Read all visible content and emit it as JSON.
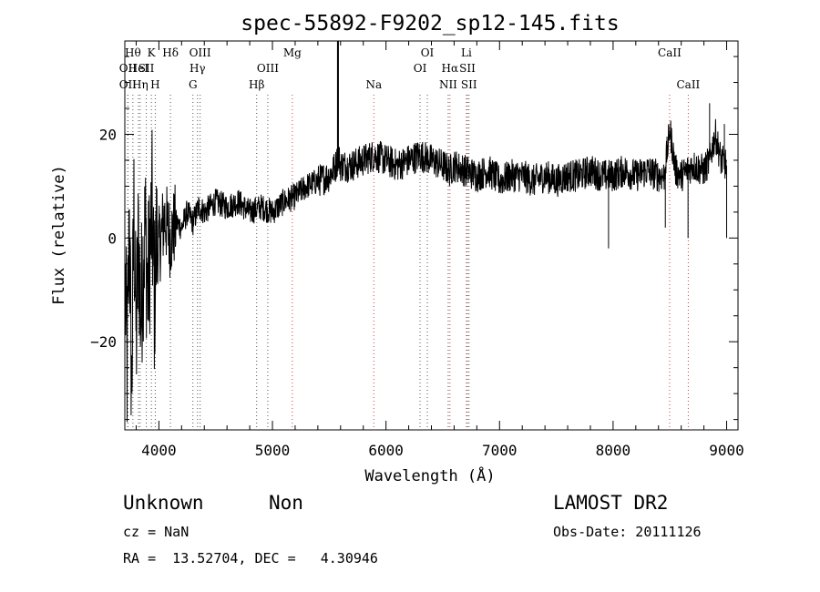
{
  "chart_data": {
    "type": "line",
    "title": "spec-55892-F9202_sp12-145.fits",
    "xlabel": "Wavelength (Å)",
    "ylabel": "Flux (relative)",
    "xlim": [
      3700,
      9100
    ],
    "ylim": [
      -37,
      38
    ],
    "x_ticks": [
      4000,
      5000,
      6000,
      7000,
      8000,
      9000
    ],
    "y_ticks": [
      -20,
      0,
      20
    ],
    "grid": false,
    "series": [
      {
        "color": "#000000",
        "x": [
          3700,
          3720,
          3740,
          3760,
          3780,
          3800,
          3820,
          3840,
          3860,
          3880,
          3900,
          3920,
          3940,
          3960,
          3980,
          4000,
          4050,
          4100,
          4150,
          4200,
          4250,
          4300,
          4350,
          4400,
          4500,
          4600,
          4700,
          4800,
          4900,
          5000,
          5100,
          5200,
          5300,
          5400,
          5500,
          5560,
          5580,
          5600,
          5700,
          5800,
          5900,
          6000,
          6100,
          6200,
          6300,
          6400,
          6500,
          6563,
          6600,
          6700,
          6800,
          6900,
          7000,
          7100,
          7200,
          7300,
          7400,
          7500,
          7600,
          7700,
          7800,
          7900,
          8000,
          8100,
          8200,
          8300,
          8400,
          8450,
          8500,
          8550,
          8600,
          8650,
          8700,
          8800,
          8850,
          8900,
          8950,
          9000
        ],
        "y": [
          -5,
          -25,
          3,
          -30,
          5,
          -20,
          0,
          -15,
          -5,
          2,
          -10,
          -3,
          5,
          -12,
          0,
          -2,
          4,
          0,
          3,
          2,
          5,
          3,
          6,
          5,
          7,
          6,
          7,
          5,
          6,
          5,
          7,
          8,
          10,
          11,
          12,
          14,
          16,
          14,
          14,
          15,
          16,
          15,
          14,
          15,
          16,
          15,
          14,
          13,
          14,
          13,
          12,
          13,
          11,
          12,
          12,
          11,
          12,
          11,
          12,
          12,
          13,
          12,
          12,
          13,
          12,
          13,
          12,
          12,
          21,
          13,
          12,
          13,
          14,
          13,
          15,
          20,
          15,
          14
        ]
      }
    ],
    "spikes": [
      {
        "x": 5577,
        "y": 38
      },
      {
        "x": 7960,
        "y": -2
      },
      {
        "x": 8460,
        "y": 2
      },
      {
        "x": 8660,
        "y": 0
      },
      {
        "x": 8850,
        "y": 26
      },
      {
        "x": 8980,
        "y": 22
      },
      {
        "x": 9000,
        "y": 0
      }
    ],
    "line_markers": [
      {
        "wl": 3727,
        "label": "OII",
        "row": 1,
        "color": "#555555"
      },
      {
        "wl": 3727,
        "label": "OII",
        "row": 2,
        "color": "#555555"
      },
      {
        "wl": 3771,
        "label": "Hθ",
        "row": 0,
        "color": "#555555"
      },
      {
        "wl": 3820,
        "label": "HeI",
        "row": 1,
        "color": "#555555"
      },
      {
        "wl": 3835,
        "label": "Hη",
        "row": 2,
        "color": "#555555"
      },
      {
        "wl": 3889,
        "label": "SII",
        "row": 1,
        "color": "#555555"
      },
      {
        "wl": 3934,
        "label": "K",
        "row": 0,
        "color": "#555555"
      },
      {
        "wl": 3968,
        "label": "H",
        "row": 2,
        "color": "#555555"
      },
      {
        "wl": 4102,
        "label": "Hδ",
        "row": 0,
        "color": "#555555"
      },
      {
        "wl": 4300,
        "label": "G",
        "row": 2,
        "color": "#555555"
      },
      {
        "wl": 4340,
        "label": "Hγ",
        "row": 1,
        "color": "#555555"
      },
      {
        "wl": 4363,
        "label": "OIII",
        "row": 0,
        "color": "#555555"
      },
      {
        "wl": 4861,
        "label": "Hβ",
        "row": 2,
        "color": "#555555"
      },
      {
        "wl": 4959,
        "label": "OIII",
        "row": 1,
        "color": "#555555"
      },
      {
        "wl": 5175,
        "label": "Mg",
        "row": 0,
        "color": "#d04040"
      },
      {
        "wl": 5893,
        "label": "Na",
        "row": 2,
        "color": "#d04040"
      },
      {
        "wl": 6300,
        "label": "OI",
        "row": 1,
        "color": "#555555"
      },
      {
        "wl": 6364,
        "label": "OI",
        "row": 0,
        "color": "#555555"
      },
      {
        "wl": 6548,
        "label": "NII",
        "row": 2,
        "color": "#555555"
      },
      {
        "wl": 6563,
        "label": "Hα",
        "row": 1,
        "color": "#d04040"
      },
      {
        "wl": 6708,
        "label": "Li",
        "row": 0,
        "color": "#d04040"
      },
      {
        "wl": 6717,
        "label": "SII",
        "row": 1,
        "color": "#555555"
      },
      {
        "wl": 6731,
        "label": "SII",
        "row": 2,
        "color": "#555555"
      },
      {
        "wl": 8498,
        "label": "CaII",
        "row": 0,
        "color": "#d04040"
      },
      {
        "wl": 8662,
        "label": "CaII",
        "row": 2,
        "color": "#d04040"
      }
    ]
  },
  "info": {
    "class_label": "Unknown",
    "subclass_label": "Non",
    "survey_label": "LAMOST DR2",
    "cz_text": "cz = NaN",
    "obs_date_text": "Obs-Date: 20111126",
    "coords_text": "RA =  13.52704, DEC =   4.30946"
  }
}
